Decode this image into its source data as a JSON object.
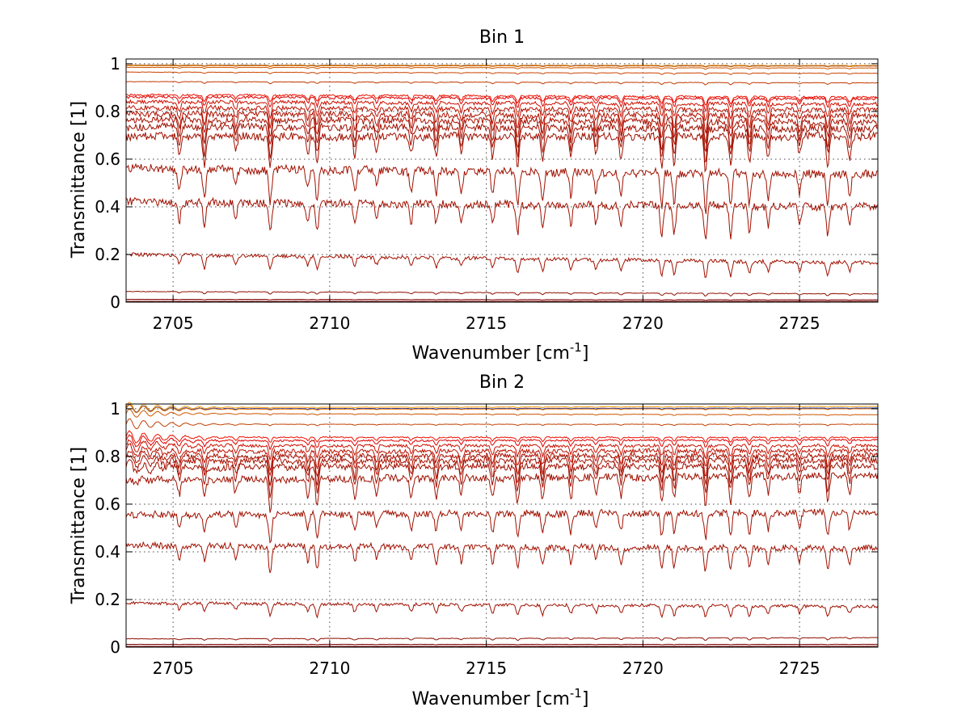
{
  "chart_data": [
    {
      "type": "line",
      "title": "Bin 1",
      "xlabel_base": "Wavenumber [cm",
      "xlabel_sup": "-1",
      "xlabel_end": "]",
      "ylabel": "Transmittance [1]",
      "xlim": [
        2703.5,
        2727.5
      ],
      "ylim": [
        0,
        1.02
      ],
      "xticks": [
        2705,
        2710,
        2715,
        2720,
        2725
      ],
      "yticks": [
        0,
        0.2,
        0.4,
        0.6,
        0.8,
        1
      ],
      "ytick_labels": [
        "0",
        "0.2",
        "0.4",
        "0.6",
        "0.8",
        "1"
      ],
      "grid": true,
      "absorption_lines": [
        {
          "x": 2705.2,
          "depth": 0.6
        },
        {
          "x": 2706.0,
          "depth": 0.9
        },
        {
          "x": 2707.0,
          "depth": 0.5
        },
        {
          "x": 2708.1,
          "depth": 1.0
        },
        {
          "x": 2709.3,
          "depth": 0.6
        },
        {
          "x": 2709.6,
          "depth": 0.9
        },
        {
          "x": 2710.8,
          "depth": 0.7
        },
        {
          "x": 2711.5,
          "depth": 0.5
        },
        {
          "x": 2712.6,
          "depth": 0.6
        },
        {
          "x": 2713.4,
          "depth": 0.7
        },
        {
          "x": 2714.2,
          "depth": 0.6
        },
        {
          "x": 2715.2,
          "depth": 0.7
        },
        {
          "x": 2716.0,
          "depth": 1.0
        },
        {
          "x": 2716.8,
          "depth": 0.8
        },
        {
          "x": 2717.7,
          "depth": 0.7
        },
        {
          "x": 2718.5,
          "depth": 0.6
        },
        {
          "x": 2719.3,
          "depth": 0.8
        },
        {
          "x": 2720.6,
          "depth": 1.0
        },
        {
          "x": 2721.0,
          "depth": 0.9
        },
        {
          "x": 2722.0,
          "depth": 1.2
        },
        {
          "x": 2722.8,
          "depth": 1.0
        },
        {
          "x": 2723.4,
          "depth": 0.9
        },
        {
          "x": 2724.0,
          "depth": 0.7
        },
        {
          "x": 2725.0,
          "depth": 0.6
        },
        {
          "x": 2725.9,
          "depth": 0.9
        },
        {
          "x": 2726.6,
          "depth": 0.7
        }
      ],
      "series": [
        {
          "baseline": [
            0.995,
            0.993
          ],
          "line_depth": 0.004,
          "color": "#ff9900"
        },
        {
          "baseline": [
            0.993,
            0.991
          ],
          "line_depth": 0.004,
          "color": "#0033cc"
        },
        {
          "baseline": [
            0.992,
            0.99
          ],
          "line_depth": 0.004,
          "color": "#ee7700"
        },
        {
          "baseline": [
            0.985,
            0.982
          ],
          "line_depth": 0.005,
          "color": "#cc5500"
        },
        {
          "baseline": [
            0.965,
            0.96
          ],
          "line_depth": 0.006,
          "color": "#cc4400"
        },
        {
          "baseline": [
            0.925,
            0.92
          ],
          "line_depth": 0.008,
          "color": "#c03800"
        },
        {
          "baseline": [
            0.87,
            0.86
          ],
          "line_depth": 0.03,
          "color": "#ee1100"
        },
        {
          "baseline": [
            0.86,
            0.852
          ],
          "line_depth": 0.04,
          "color": "#dd0000"
        },
        {
          "baseline": [
            0.84,
            0.83
          ],
          "line_depth": 0.06,
          "color": "#cc1100"
        },
        {
          "baseline": [
            0.815,
            0.805
          ],
          "line_depth": 0.08,
          "color": "#bb1100"
        },
        {
          "baseline": [
            0.79,
            0.78
          ],
          "line_depth": 0.095,
          "color": "#b01000"
        },
        {
          "baseline": [
            0.765,
            0.755
          ],
          "line_depth": 0.11,
          "color": "#a81000"
        },
        {
          "baseline": [
            0.735,
            0.728
          ],
          "line_depth": 0.12,
          "color": "#a00f00"
        },
        {
          "baseline": [
            0.695,
            0.695
          ],
          "line_depth": 0.13,
          "color": "#a01000"
        },
        {
          "baseline": [
            0.56,
            0.535
          ],
          "line_depth": 0.14,
          "color": "#a01000"
        },
        {
          "baseline": [
            0.42,
            0.4
          ],
          "line_depth": 0.13,
          "color": "#a01000"
        },
        {
          "baseline": [
            0.2,
            0.165
          ],
          "line_depth": 0.06,
          "color": "#a01000"
        },
        {
          "baseline": [
            0.045,
            0.035
          ],
          "line_depth": 0.01,
          "color": "#901000"
        },
        {
          "baseline": [
            0.012,
            0.01
          ],
          "line_depth": 0.002,
          "color": "#800000"
        },
        {
          "baseline": [
            0.004,
            0.004
          ],
          "line_depth": 0.001,
          "color": "#700000"
        }
      ]
    },
    {
      "type": "line",
      "title": "Bin 2",
      "xlabel_base": "Wavenumber [cm",
      "xlabel_sup": "-1",
      "xlabel_end": "]",
      "ylabel": "Transmittance [1]",
      "xlim": [
        2703.5,
        2727.5
      ],
      "ylim": [
        0,
        1.02
      ],
      "xticks": [
        2705,
        2710,
        2715,
        2720,
        2725
      ],
      "yticks": [
        0,
        0.2,
        0.4,
        0.6,
        0.8,
        1
      ],
      "ytick_labels": [
        "0",
        "0.2",
        "0.4",
        "0.6",
        "0.8",
        "1"
      ],
      "grid": true,
      "absorption_lines": [
        {
          "x": 2705.2,
          "depth": 0.5
        },
        {
          "x": 2706.0,
          "depth": 0.6
        },
        {
          "x": 2707.0,
          "depth": 0.5
        },
        {
          "x": 2708.1,
          "depth": 1.1
        },
        {
          "x": 2709.3,
          "depth": 0.6
        },
        {
          "x": 2709.6,
          "depth": 1.0
        },
        {
          "x": 2710.8,
          "depth": 0.7
        },
        {
          "x": 2711.5,
          "depth": 0.6
        },
        {
          "x": 2712.6,
          "depth": 0.6
        },
        {
          "x": 2713.4,
          "depth": 0.7
        },
        {
          "x": 2714.2,
          "depth": 0.6
        },
        {
          "x": 2715.2,
          "depth": 0.7
        },
        {
          "x": 2716.0,
          "depth": 0.9
        },
        {
          "x": 2716.8,
          "depth": 0.8
        },
        {
          "x": 2717.7,
          "depth": 0.7
        },
        {
          "x": 2718.5,
          "depth": 0.6
        },
        {
          "x": 2719.3,
          "depth": 0.7
        },
        {
          "x": 2720.6,
          "depth": 0.9
        },
        {
          "x": 2721.0,
          "depth": 0.8
        },
        {
          "x": 2722.0,
          "depth": 1.0
        },
        {
          "x": 2722.8,
          "depth": 0.9
        },
        {
          "x": 2723.4,
          "depth": 0.8
        },
        {
          "x": 2724.0,
          "depth": 0.6
        },
        {
          "x": 2725.0,
          "depth": 0.6
        },
        {
          "x": 2725.9,
          "depth": 0.9
        },
        {
          "x": 2726.6,
          "depth": 0.6
        }
      ],
      "series": [
        {
          "baseline": [
            1.005,
            1.01
          ],
          "line_depth": 0.004,
          "color": "#ff9900",
          "ripple": 0.025
        },
        {
          "baseline": [
            1.0,
            1.003
          ],
          "line_depth": 0.004,
          "color": "#0033cc",
          "ripple": 0.02
        },
        {
          "baseline": [
            0.998,
            1.0
          ],
          "line_depth": 0.004,
          "color": "#ee7700",
          "ripple": 0.02
        },
        {
          "baseline": [
            0.98,
            0.975
          ],
          "line_depth": 0.005,
          "color": "#cc5500",
          "ripple": 0.02
        },
        {
          "baseline": [
            0.935,
            0.935
          ],
          "line_depth": 0.006,
          "color": "#c04000",
          "ripple": 0.025
        },
        {
          "baseline": [
            0.88,
            0.88
          ],
          "line_depth": 0.02,
          "color": "#ee1100",
          "ripple": 0.03
        },
        {
          "baseline": [
            0.865,
            0.87
          ],
          "line_depth": 0.03,
          "color": "#dd0000",
          "ripple": 0.03
        },
        {
          "baseline": [
            0.845,
            0.845
          ],
          "line_depth": 0.05,
          "color": "#cc1100",
          "ripple": 0.03
        },
        {
          "baseline": [
            0.82,
            0.825
          ],
          "line_depth": 0.07,
          "color": "#bb1100",
          "ripple": 0.03
        },
        {
          "baseline": [
            0.8,
            0.805
          ],
          "line_depth": 0.085,
          "color": "#b01000",
          "ripple": 0.03
        },
        {
          "baseline": [
            0.78,
            0.785
          ],
          "line_depth": 0.1,
          "color": "#a81000",
          "ripple": 0.03
        },
        {
          "baseline": [
            0.755,
            0.76
          ],
          "line_depth": 0.11,
          "color": "#a00f00",
          "ripple": 0.025
        },
        {
          "baseline": [
            0.7,
            0.72
          ],
          "line_depth": 0.12,
          "color": "#a01000",
          "ripple": 0.01
        },
        {
          "baseline": [
            0.555,
            0.565
          ],
          "line_depth": 0.11,
          "color": "#a01000",
          "ripple": 0.005
        },
        {
          "baseline": [
            0.425,
            0.415
          ],
          "line_depth": 0.1,
          "color": "#a01000",
          "ripple": 0.005
        },
        {
          "baseline": [
            0.185,
            0.17
          ],
          "line_depth": 0.05,
          "color": "#a01000",
          "ripple": 0.0
        },
        {
          "baseline": [
            0.035,
            0.04
          ],
          "line_depth": 0.01,
          "color": "#901000",
          "ripple": 0.0
        },
        {
          "baseline": [
            0.012,
            0.012
          ],
          "line_depth": 0.002,
          "color": "#800000",
          "ripple": 0.0
        },
        {
          "baseline": [
            0.004,
            0.004
          ],
          "line_depth": 0.001,
          "color": "#700000",
          "ripple": 0.0
        }
      ]
    }
  ]
}
